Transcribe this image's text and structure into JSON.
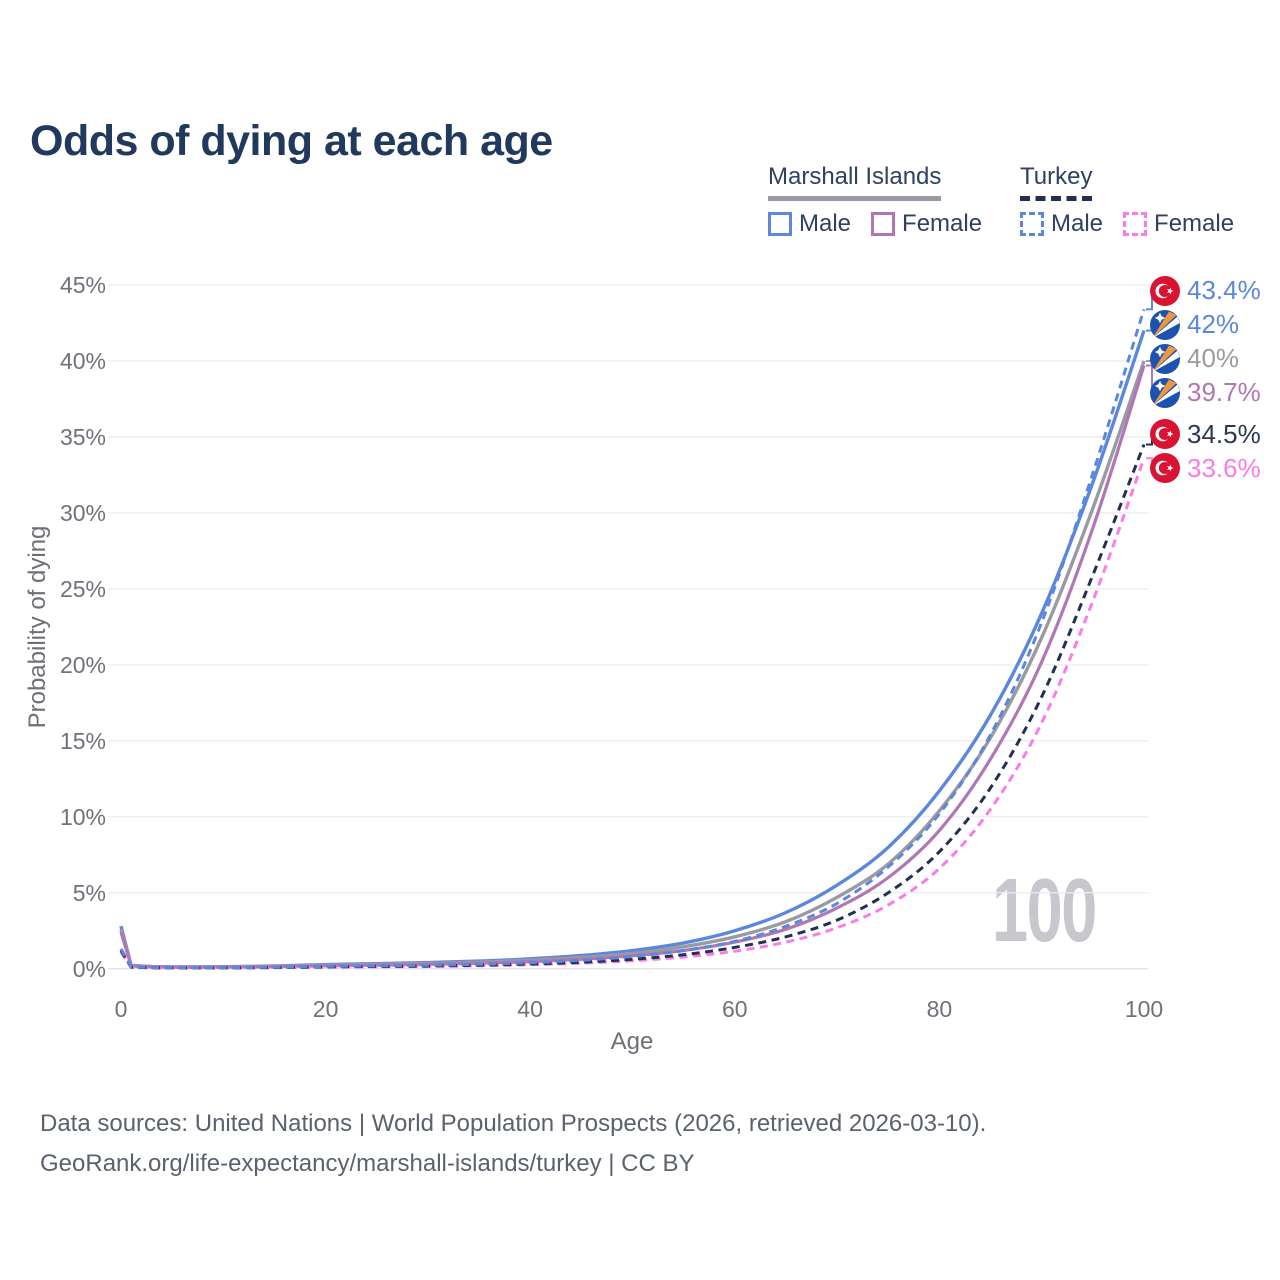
{
  "title": "Odds of dying at each age",
  "watermark": "100",
  "legend": {
    "position": "top-right",
    "groups": [
      {
        "name": "Marshall Islands",
        "line_style": "solid",
        "header_line_color": "#9a9aa2",
        "items": [
          {
            "label": "Male",
            "color": "#5b87dd"
          },
          {
            "label": "Female",
            "color": "#b077b4"
          }
        ]
      },
      {
        "name": "Turkey",
        "line_style": "dashed",
        "header_line_color": "#233050",
        "items": [
          {
            "label": "Male",
            "color": "#5b87dd"
          },
          {
            "label": "Female",
            "color": "#fb7ce8"
          }
        ]
      }
    ]
  },
  "chart_data": {
    "type": "line",
    "title": "Odds of dying at each age",
    "xlabel": "Age",
    "ylabel": "Probability of dying",
    "xlim": [
      0,
      100
    ],
    "ylim": [
      0,
      45
    ],
    "grid": "horizontal",
    "legend_position": "top-right",
    "x_ticks": [
      {
        "value": 0,
        "label": "0"
      },
      {
        "value": 20,
        "label": "20"
      },
      {
        "value": 40,
        "label": "40"
      },
      {
        "value": 60,
        "label": "60"
      },
      {
        "value": 80,
        "label": "80"
      },
      {
        "value": 100,
        "label": "100"
      }
    ],
    "y_ticks": [
      {
        "value": 0,
        "label": "0%"
      },
      {
        "value": 5,
        "label": "5%"
      },
      {
        "value": 10,
        "label": "10%"
      },
      {
        "value": 15,
        "label": "15%"
      },
      {
        "value": 20,
        "label": "20%"
      },
      {
        "value": 25,
        "label": "25%"
      },
      {
        "value": 30,
        "label": "30%"
      },
      {
        "value": 35,
        "label": "35%"
      },
      {
        "value": 40,
        "label": "40%"
      },
      {
        "value": 45,
        "label": "45%"
      }
    ],
    "series": [
      {
        "id": "marshall-islands-male",
        "country": "Marshall Islands",
        "sex": "Male",
        "color": "#5b87dd",
        "dashed": false,
        "width": 3.4,
        "points": [
          [
            0,
            2.8
          ],
          [
            1,
            0.22
          ],
          [
            3,
            0.14
          ],
          [
            5,
            0.12
          ],
          [
            10,
            0.13
          ],
          [
            15,
            0.18
          ],
          [
            20,
            0.27
          ],
          [
            25,
            0.33
          ],
          [
            30,
            0.4
          ],
          [
            35,
            0.5
          ],
          [
            40,
            0.65
          ],
          [
            45,
            0.87
          ],
          [
            50,
            1.2
          ],
          [
            55,
            1.7
          ],
          [
            60,
            2.5
          ],
          [
            65,
            3.7
          ],
          [
            70,
            5.5
          ],
          [
            75,
            8.0
          ],
          [
            80,
            11.7
          ],
          [
            85,
            16.7
          ],
          [
            90,
            23.4
          ],
          [
            95,
            32.0
          ],
          [
            100,
            42.0
          ]
        ],
        "end_label": {
          "text": "42%",
          "color": "#5b87dd",
          "flag": "marshall-islands-flag-icon"
        }
      },
      {
        "id": "marshall-islands-both-sexes",
        "country": "Marshall Islands",
        "sex": "Both sexes",
        "color": "#9a9aa2",
        "dashed": false,
        "width": 3.4,
        "points": [
          [
            0,
            2.6
          ],
          [
            1,
            0.2
          ],
          [
            3,
            0.13
          ],
          [
            5,
            0.11
          ],
          [
            10,
            0.12
          ],
          [
            15,
            0.16
          ],
          [
            20,
            0.23
          ],
          [
            25,
            0.28
          ],
          [
            30,
            0.34
          ],
          [
            35,
            0.43
          ],
          [
            40,
            0.56
          ],
          [
            45,
            0.74
          ],
          [
            50,
            1.0
          ],
          [
            55,
            1.45
          ],
          [
            60,
            2.1
          ],
          [
            65,
            3.1
          ],
          [
            70,
            4.7
          ],
          [
            75,
            6.9
          ],
          [
            80,
            10.4
          ],
          [
            85,
            15.2
          ],
          [
            90,
            21.8
          ],
          [
            95,
            30.3
          ],
          [
            100,
            40.0
          ]
        ],
        "end_label": {
          "text": "40%",
          "color": "#9b9ba1",
          "flag": "marshall-islands-flag-icon"
        }
      },
      {
        "id": "marshall-islands-female",
        "country": "Marshall Islands",
        "sex": "Female",
        "color": "#b077b4",
        "dashed": false,
        "width": 3.2,
        "points": [
          [
            0,
            2.4
          ],
          [
            1,
            0.18
          ],
          [
            3,
            0.12
          ],
          [
            5,
            0.1
          ],
          [
            10,
            0.1
          ],
          [
            15,
            0.14
          ],
          [
            20,
            0.19
          ],
          [
            25,
            0.23
          ],
          [
            30,
            0.28
          ],
          [
            35,
            0.36
          ],
          [
            40,
            0.47
          ],
          [
            45,
            0.62
          ],
          [
            50,
            0.85
          ],
          [
            55,
            1.2
          ],
          [
            60,
            1.75
          ],
          [
            65,
            2.6
          ],
          [
            70,
            4.0
          ],
          [
            75,
            6.0
          ],
          [
            80,
            9.1
          ],
          [
            85,
            13.8
          ],
          [
            90,
            20.2
          ],
          [
            95,
            29.0
          ],
          [
            100,
            39.7
          ]
        ],
        "end_label": {
          "text": "39.7%",
          "color": "#b077b4",
          "flag": "marshall-islands-flag-icon"
        }
      },
      {
        "id": "turkey-female",
        "country": "Turkey",
        "sex": "Female",
        "color": "#fb7ce8",
        "dashed": true,
        "width": 3.0,
        "points": [
          [
            0,
            1.1
          ],
          [
            1,
            0.09
          ],
          [
            3,
            0.05
          ],
          [
            5,
            0.045
          ],
          [
            10,
            0.045
          ],
          [
            15,
            0.07
          ],
          [
            20,
            0.1
          ],
          [
            25,
            0.12
          ],
          [
            30,
            0.15
          ],
          [
            35,
            0.19
          ],
          [
            40,
            0.26
          ],
          [
            45,
            0.36
          ],
          [
            50,
            0.52
          ],
          [
            55,
            0.77
          ],
          [
            60,
            1.15
          ],
          [
            65,
            1.75
          ],
          [
            70,
            2.7
          ],
          [
            75,
            4.2
          ],
          [
            80,
            6.6
          ],
          [
            85,
            10.5
          ],
          [
            90,
            16.2
          ],
          [
            95,
            24.2
          ],
          [
            100,
            33.6
          ]
        ],
        "end_label": {
          "text": "33.6%",
          "color": "#fb7ce8",
          "flag": "turkey-flag-icon"
        }
      },
      {
        "id": "turkey-both-sexes",
        "country": "Turkey",
        "sex": "Both sexes",
        "color": "#233050",
        "dashed": true,
        "width": 3.0,
        "points": [
          [
            0,
            1.2
          ],
          [
            1,
            0.1
          ],
          [
            3,
            0.06
          ],
          [
            5,
            0.05
          ],
          [
            10,
            0.05
          ],
          [
            15,
            0.08
          ],
          [
            20,
            0.12
          ],
          [
            25,
            0.15
          ],
          [
            30,
            0.18
          ],
          [
            35,
            0.23
          ],
          [
            40,
            0.31
          ],
          [
            45,
            0.43
          ],
          [
            50,
            0.62
          ],
          [
            55,
            0.92
          ],
          [
            60,
            1.4
          ],
          [
            65,
            2.1
          ],
          [
            70,
            3.2
          ],
          [
            75,
            5.0
          ],
          [
            80,
            7.7
          ],
          [
            85,
            11.9
          ],
          [
            90,
            17.9
          ],
          [
            95,
            25.9
          ],
          [
            100,
            34.5
          ]
        ],
        "end_label": {
          "text": "34.5%",
          "color": "#2b3950",
          "flag": "turkey-flag-icon"
        }
      },
      {
        "id": "turkey-male",
        "country": "Turkey",
        "sex": "Male",
        "color": "#5b87dd",
        "dashed": true,
        "width": 3.0,
        "points": [
          [
            0,
            1.3
          ],
          [
            1,
            0.12
          ],
          [
            3,
            0.07
          ],
          [
            5,
            0.06
          ],
          [
            10,
            0.06
          ],
          [
            15,
            0.1
          ],
          [
            20,
            0.15
          ],
          [
            25,
            0.19
          ],
          [
            30,
            0.23
          ],
          [
            35,
            0.29
          ],
          [
            40,
            0.39
          ],
          [
            45,
            0.55
          ],
          [
            50,
            0.8
          ],
          [
            55,
            1.2
          ],
          [
            60,
            1.8
          ],
          [
            65,
            2.8
          ],
          [
            70,
            4.3
          ],
          [
            75,
            6.7
          ],
          [
            80,
            10.2
          ],
          [
            85,
            15.4
          ],
          [
            90,
            22.8
          ],
          [
            95,
            32.6
          ],
          [
            100,
            43.4
          ]
        ],
        "end_label": {
          "text": "43.4%",
          "color": "#5b87dd",
          "flag": "turkey-flag-icon"
        }
      }
    ]
  },
  "flag_colors": {
    "turkey_red": "#d91433",
    "marshall_blue": "#1d52b0",
    "marshall_orange": "#f0993c"
  },
  "footer": {
    "line1": "Data sources: United Nations | World Population Prospects (2026, retrieved 2026-03-10).",
    "line2": "GeoRank.org/life-expectancy/marshall-islands/turkey | CC BY"
  }
}
